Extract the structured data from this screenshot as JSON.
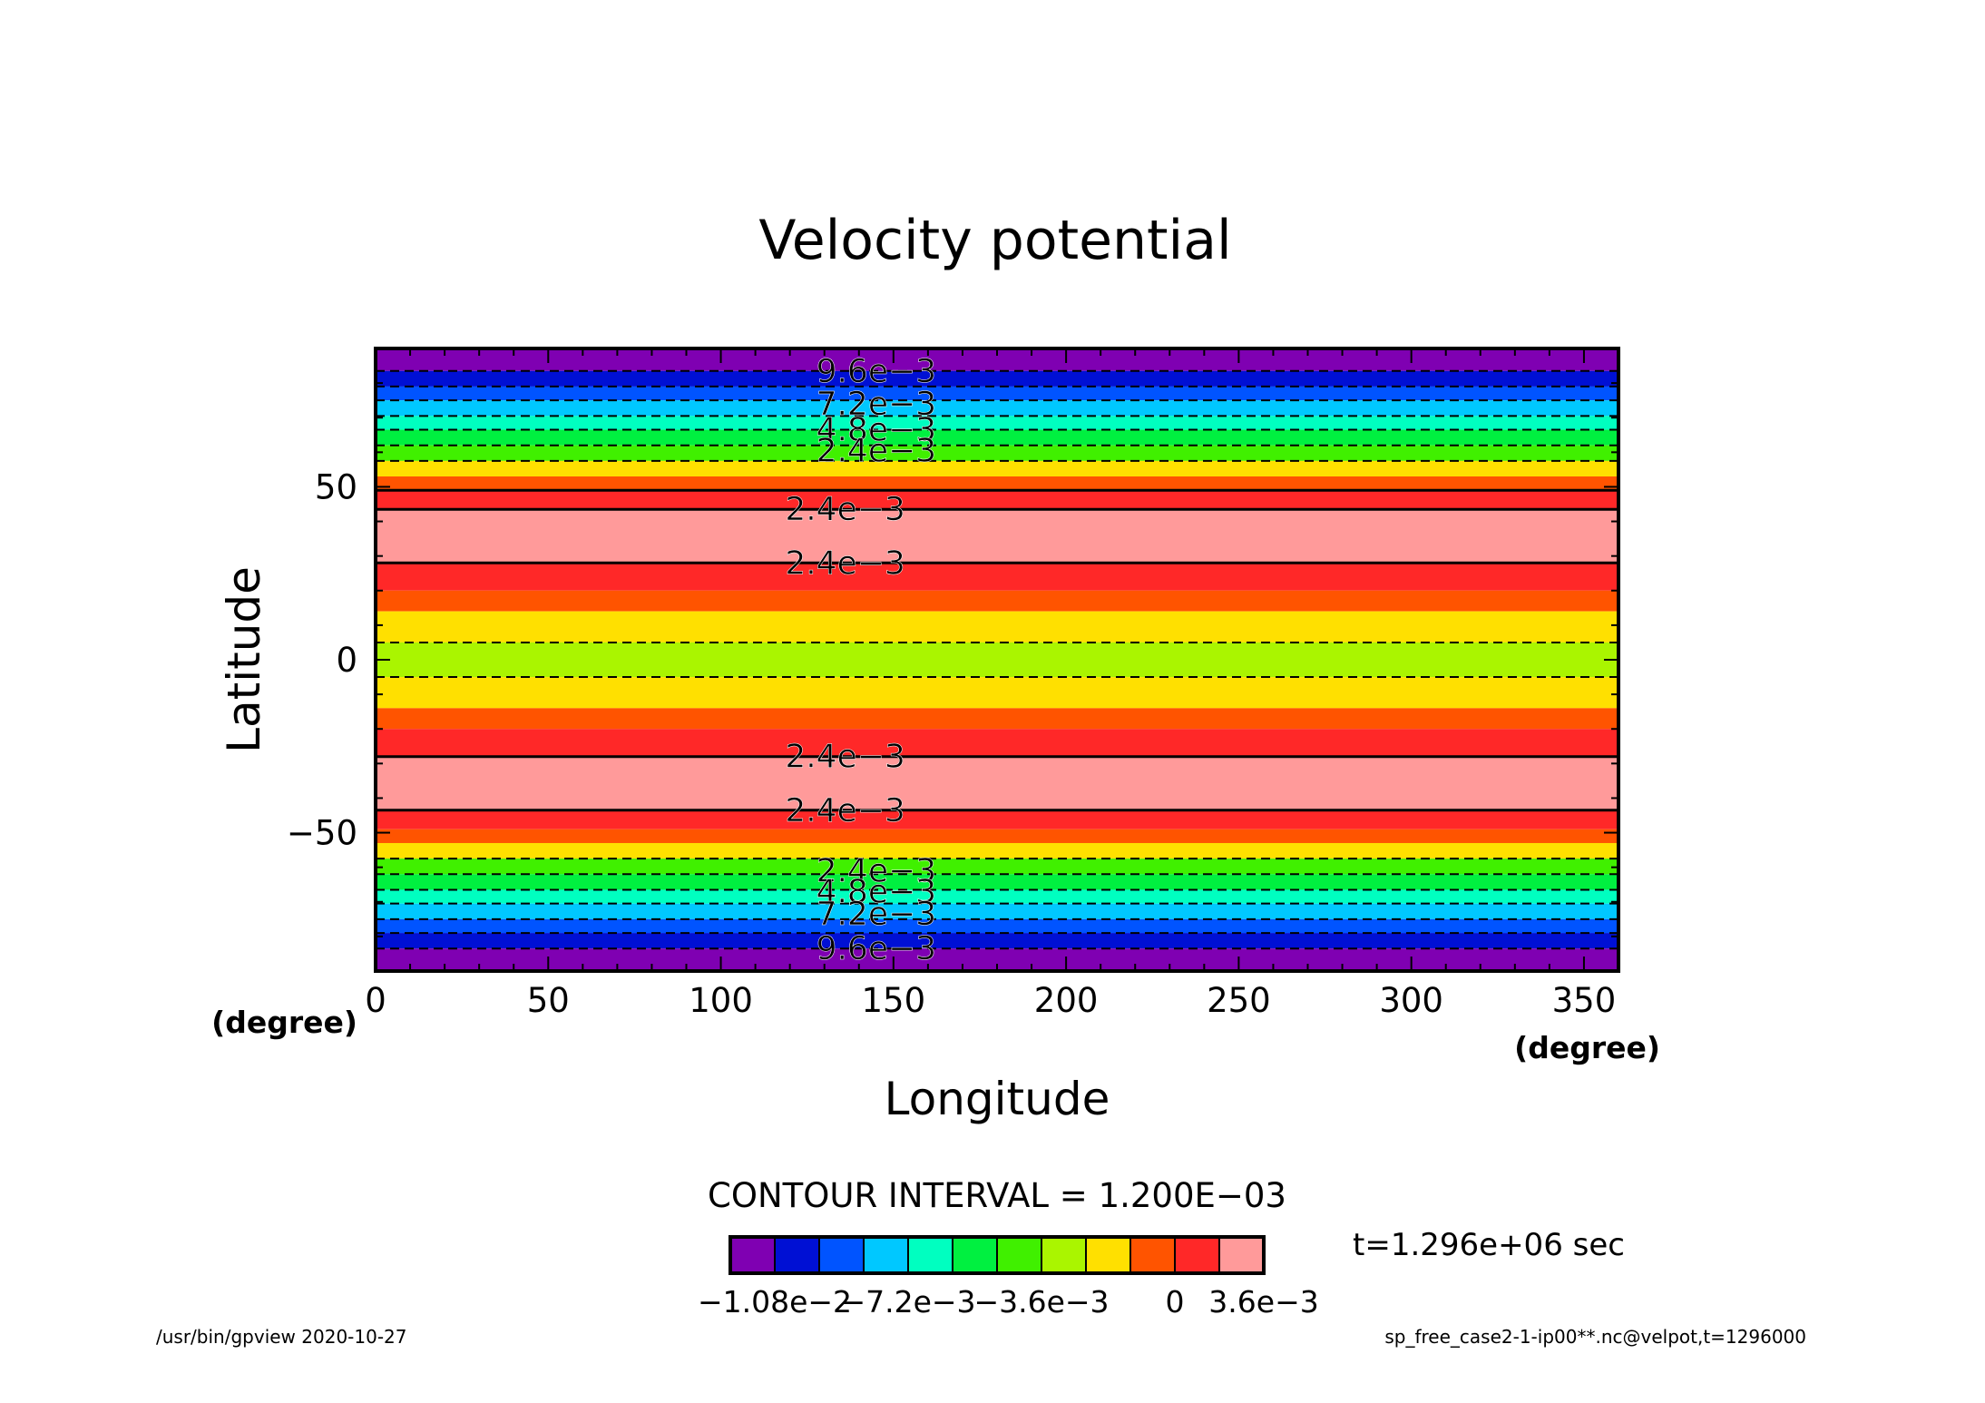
{
  "footer": {
    "left": "/usr/bin/gpview   2020-10-27",
    "right": "sp_free_case2-1-ip00**.nc@velpot,t=1296000"
  },
  "chart_data": {
    "type": "heatmap",
    "title": "Velocity potential",
    "xlabel": "Longitude",
    "ylabel": "Latitude",
    "xunit": "(degree)",
    "yunit": "",
    "xlim": [
      0,
      360
    ],
    "ylim": [
      -90,
      90
    ],
    "x_ticks": [
      0,
      50,
      100,
      150,
      200,
      250,
      300,
      350
    ],
    "y_ticks": [
      -50,
      0,
      50
    ],
    "x_tick_labels": [
      "0",
      "50",
      "100",
      "150",
      "200",
      "250",
      "300",
      "350"
    ],
    "y_tick_labels": [
      "−50",
      "0",
      "50"
    ],
    "contour_interval_text": "CONTOUR INTERVAL = 1.200E−03",
    "time_text": "t=1.296e+06 sec",
    "colorbar": {
      "colors": [
        "#7f00b2",
        "#0010d4",
        "#0054ff",
        "#00c8ff",
        "#00ffc0",
        "#00f040",
        "#40f000",
        "#aaf500",
        "#ffe000",
        "#ff5400",
        "#ff2828",
        "#ff9a9a"
      ],
      "labels": [
        "−1.08e−2",
        "−7.2e−3",
        "−3.6e−3",
        "0",
        "3.6e−3"
      ],
      "label_positions": [
        1,
        4,
        7,
        10,
        12
      ]
    },
    "bands": [
      {
        "lat_from": 83.5,
        "lat_to": 90,
        "color": "#7f00b2"
      },
      {
        "lat_from": 79,
        "lat_to": 83.5,
        "color": "#0010d4"
      },
      {
        "lat_from": 75,
        "lat_to": 79,
        "color": "#0054ff"
      },
      {
        "lat_from": 70.5,
        "lat_to": 75,
        "color": "#00c8ff"
      },
      {
        "lat_from": 66.5,
        "lat_to": 70.5,
        "color": "#00ffc0"
      },
      {
        "lat_from": 62,
        "lat_to": 66.5,
        "color": "#00f040"
      },
      {
        "lat_from": 57.5,
        "lat_to": 62,
        "color": "#40f000"
      },
      {
        "lat_from": 53,
        "lat_to": 57.5,
        "color": "#ffe000"
      },
      {
        "lat_from": 49,
        "lat_to": 53,
        "color": "#ff5400"
      },
      {
        "lat_from": 43.5,
        "lat_to": 49,
        "color": "#ff2828"
      },
      {
        "lat_from": 28,
        "lat_to": 43.5,
        "color": "#ff9a9a"
      },
      {
        "lat_from": 20,
        "lat_to": 28,
        "color": "#ff2828"
      },
      {
        "lat_from": 14,
        "lat_to": 20,
        "color": "#ff5400"
      },
      {
        "lat_from": 5,
        "lat_to": 14,
        "color": "#ffe000"
      },
      {
        "lat_from": -5,
        "lat_to": 5,
        "color": "#aaf500"
      },
      {
        "lat_from": -14,
        "lat_to": -5,
        "color": "#ffe000"
      },
      {
        "lat_from": -20,
        "lat_to": -14,
        "color": "#ff5400"
      },
      {
        "lat_from": -28,
        "lat_to": -20,
        "color": "#ff2828"
      },
      {
        "lat_from": -43.5,
        "lat_to": -28,
        "color": "#ff9a9a"
      },
      {
        "lat_from": -49,
        "lat_to": -43.5,
        "color": "#ff2828"
      },
      {
        "lat_from": -53,
        "lat_to": -49,
        "color": "#ff5400"
      },
      {
        "lat_from": -57.5,
        "lat_to": -53,
        "color": "#ffe000"
      },
      {
        "lat_from": -62,
        "lat_to": -57.5,
        "color": "#40f000"
      },
      {
        "lat_from": -66.5,
        "lat_to": -62,
        "color": "#00f040"
      },
      {
        "lat_from": -70.5,
        "lat_to": -66.5,
        "color": "#00ffc0"
      },
      {
        "lat_from": -75,
        "lat_to": -70.5,
        "color": "#00c8ff"
      },
      {
        "lat_from": -79,
        "lat_to": -75,
        "color": "#0054ff"
      },
      {
        "lat_from": -83.5,
        "lat_to": -79,
        "color": "#0010d4"
      },
      {
        "lat_from": -90,
        "lat_to": -83.5,
        "color": "#7f00b2"
      }
    ],
    "contours": [
      {
        "lat": 83.5,
        "dashed": true
      },
      {
        "lat": 79,
        "dashed": true
      },
      {
        "lat": 75,
        "dashed": true
      },
      {
        "lat": 70.5,
        "dashed": true
      },
      {
        "lat": 66.5,
        "dashed": true
      },
      {
        "lat": 62,
        "dashed": true
      },
      {
        "lat": 57.5,
        "dashed": true
      },
      {
        "lat": 49,
        "dashed": false
      },
      {
        "lat": 43.5,
        "dashed": false
      },
      {
        "lat": 28,
        "dashed": false
      },
      {
        "lat": 5,
        "dashed": true
      },
      {
        "lat": -5,
        "dashed": true
      },
      {
        "lat": -28,
        "dashed": false
      },
      {
        "lat": -43.5,
        "dashed": false
      },
      {
        "lat": -57.5,
        "dashed": true
      },
      {
        "lat": -62,
        "dashed": true
      },
      {
        "lat": -66.5,
        "dashed": true
      },
      {
        "lat": -70.5,
        "dashed": true
      },
      {
        "lat": -75,
        "dashed": true
      },
      {
        "lat": -79,
        "dashed": true
      },
      {
        "lat": -83.5,
        "dashed": true
      }
    ],
    "contour_labels": [
      {
        "text": "9.6e−3",
        "lat": 83.5,
        "lon": 145
      },
      {
        "text": "7.2e−3",
        "lat": 74,
        "lon": 145
      },
      {
        "text": "4.8e−3",
        "lat": 66.5,
        "lon": 145
      },
      {
        "text": "2.4e−3",
        "lat": 60.5,
        "lon": 145
      },
      {
        "text": "2.4e−3",
        "lat": 43.5,
        "lon": 136
      },
      {
        "text": "2.4e−3",
        "lat": 28,
        "lon": 136
      },
      {
        "text": "2.4e−3",
        "lat": -28,
        "lon": 136
      },
      {
        "text": "2.4e−3",
        "lat": -43.5,
        "lon": 136
      },
      {
        "text": "2.4e−3",
        "lat": -61,
        "lon": 145
      },
      {
        "text": "4.8e−3",
        "lat": -67,
        "lon": 145
      },
      {
        "text": "7.2e−3",
        "lat": -73.5,
        "lon": 145
      },
      {
        "text": "9.6e−3",
        "lat": -83.5,
        "lon": 145
      }
    ]
  }
}
